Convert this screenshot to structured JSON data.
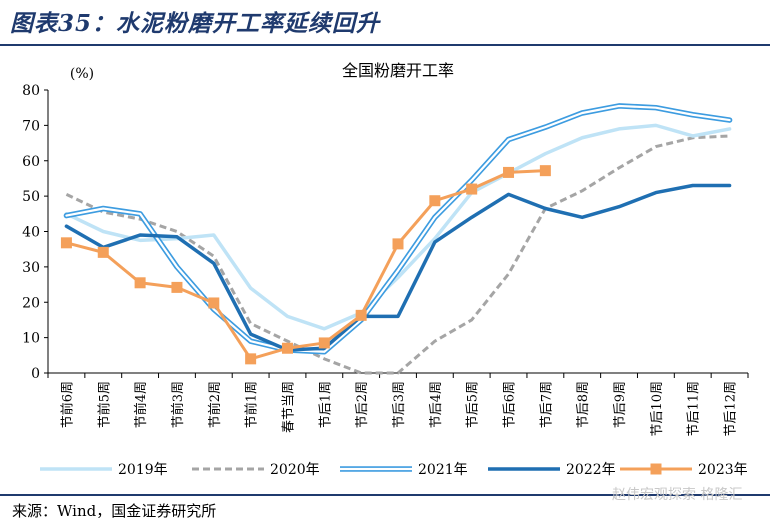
{
  "figure": {
    "title": "图表35：水泥粉磨开工率延续回升"
  },
  "source": "来源：Wind，国金证券研究所",
  "watermark": "赵伟宏观探索 格隆汇",
  "chart_data": {
    "type": "line",
    "title": "全国粉磨开工率",
    "ylabel": "(%)",
    "xlabel": "",
    "ylim": [
      0,
      80
    ],
    "yticks": [
      0,
      10,
      20,
      30,
      40,
      50,
      60,
      70,
      80
    ],
    "grid": false,
    "legend_position": "bottom",
    "categories": [
      "节前6周",
      "节前5周",
      "节前4周",
      "节前3周",
      "节前2周",
      "节前1周",
      "春节当周",
      "节后1周",
      "节后2周",
      "节后3周",
      "节后4周",
      "节后5周",
      "节后6周",
      "节后7周",
      "节后8周",
      "节后9周",
      "节后10周",
      "节后11周",
      "节后12周"
    ],
    "series": [
      {
        "name": "2019年",
        "color": "#bfe3f6",
        "style": "solid",
        "width": 3.5,
        "marker": "none",
        "values": [
          45,
          40,
          37.5,
          38,
          39,
          24,
          16,
          12.5,
          17,
          27,
          38,
          51,
          56.5,
          62,
          66.5,
          69,
          70,
          67,
          69
        ]
      },
      {
        "name": "2020年",
        "color": "#a5a5a5",
        "style": "dashed",
        "width": 3,
        "marker": "none",
        "values": [
          50.5,
          45.5,
          43.5,
          40,
          33,
          14,
          9,
          4,
          0,
          0,
          9,
          15,
          28,
          46.5,
          51.5,
          58,
          64,
          66.5,
          67
        ]
      },
      {
        "name": "2021年",
        "color": "#3d9ce0",
        "style": "double",
        "width": 2.5,
        "marker": "none",
        "values": [
          44.5,
          46.5,
          45,
          30,
          18,
          9,
          6.5,
          6,
          15,
          29,
          44,
          54.5,
          66,
          69.5,
          73.5,
          75.5,
          75,
          73,
          71.5
        ]
      },
      {
        "name": "2022年",
        "color": "#1f6fb2",
        "style": "solid",
        "width": 3.5,
        "marker": "none",
        "values": [
          41.5,
          35.5,
          39,
          38.5,
          31,
          11,
          6.5,
          7,
          16,
          16,
          37,
          44,
          50.5,
          46.5,
          44,
          47,
          51,
          53,
          53
        ]
      },
      {
        "name": "2023年",
        "color": "#f4a05a",
        "style": "solid",
        "width": 3,
        "marker": "square",
        "values": [
          36.8,
          34.1,
          25.5,
          24.2,
          19.8,
          4,
          7,
          8.5,
          16.3,
          36.5,
          48.7,
          52,
          56.7,
          57.2,
          null,
          null,
          null,
          null,
          null
        ]
      }
    ]
  }
}
